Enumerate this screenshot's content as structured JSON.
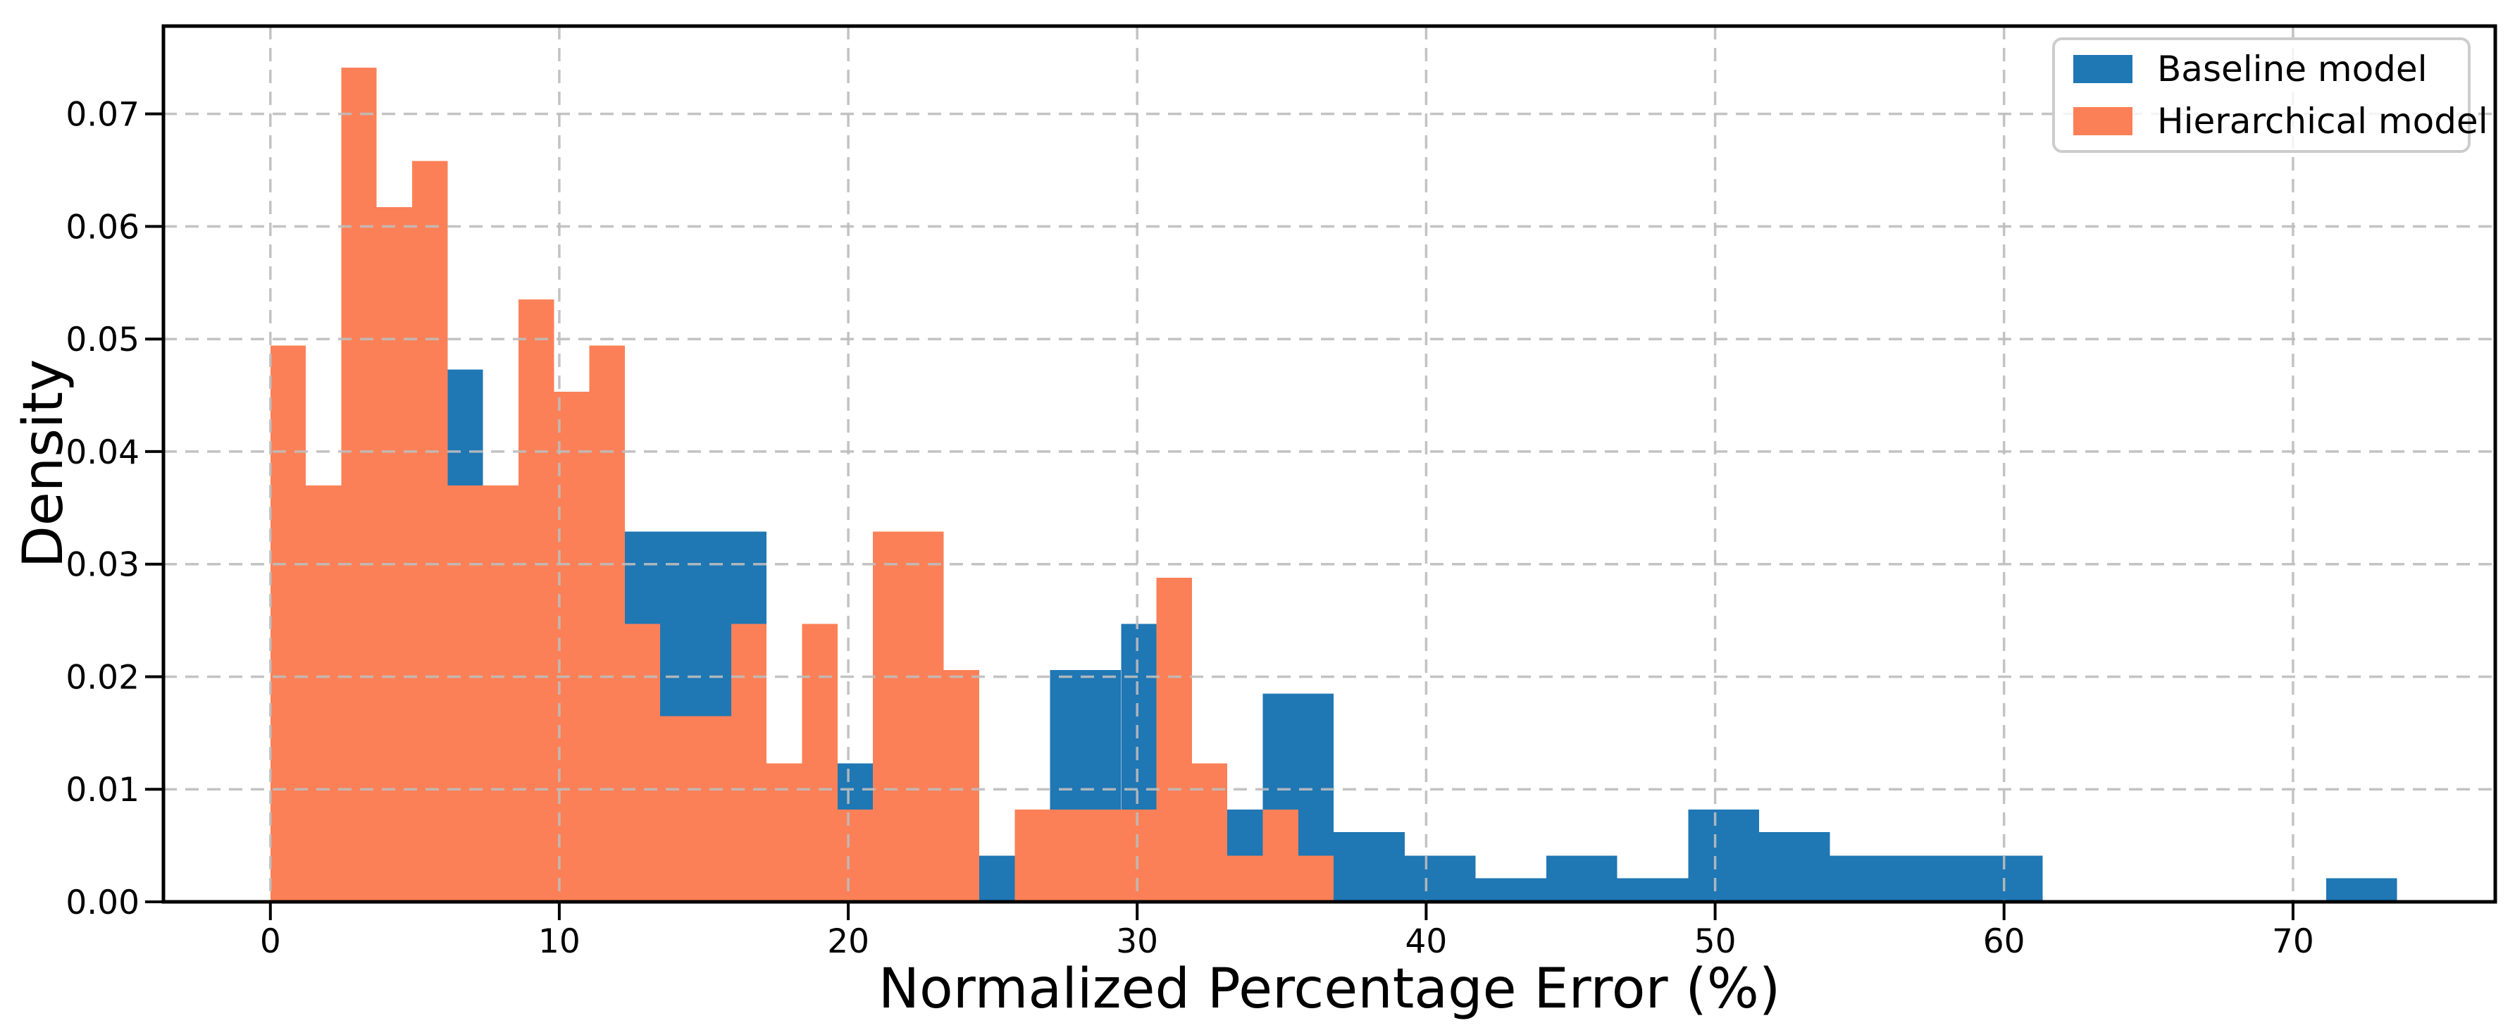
{
  "chart_data": {
    "type": "bar",
    "subtype": "overlaid-histograms",
    "title": "",
    "xlabel": "Normalized Percentage Error (%)",
    "ylabel": "Density",
    "xlim": [
      -3.7,
      77.0
    ],
    "ylim": [
      0,
      0.0778
    ],
    "x_ticks": [
      0,
      10,
      20,
      30,
      40,
      50,
      60,
      70
    ],
    "x_tick_labels": [
      "0",
      "10",
      "20",
      "30",
      "40",
      "50",
      "60",
      "70"
    ],
    "y_ticks": [
      0.0,
      0.01,
      0.02,
      0.03,
      0.04,
      0.05,
      0.06,
      0.07
    ],
    "y_tick_labels": [
      "0.00",
      "0.01",
      "0.02",
      "0.03",
      "0.04",
      "0.05",
      "0.06",
      "0.07"
    ],
    "grid": {
      "on": true,
      "style": "dashed",
      "color": "#bcbcbc",
      "above_bars": true
    },
    "legend": {
      "position": "upper right",
      "border_color": "#cccccc",
      "entries": [
        {
          "label": "Baseline model",
          "color": "#1f77b4"
        },
        {
          "label": "Hierarchical model",
          "color": "#fb8057"
        }
      ]
    },
    "series": [
      {
        "name": "Baseline model",
        "color": "#1f77b4",
        "bin_start": 0,
        "bin_width": 2.45333,
        "densities": [
          0.0329,
          0.0452,
          0.0473,
          0.0288,
          0.0308,
          0.0329,
          0.0329,
          0.0103,
          0.0123,
          0.0144,
          0.0041,
          0.0206,
          0.0247,
          0.0082,
          0.0185,
          0.0062,
          0.0041,
          0.0021,
          0.0041,
          0.0021,
          0.0082,
          0.0062,
          0.0041,
          0.0041,
          0.0041,
          0,
          0,
          0,
          0,
          0.0021
        ]
      },
      {
        "name": "Hierarchical model",
        "color": "#fb8057",
        "bin_start": 0,
        "bin_width": 1.22667,
        "densities": [
          0.0494,
          0.037,
          0.0741,
          0.0617,
          0.0658,
          0.037,
          0.037,
          0.0535,
          0.0453,
          0.0494,
          0.0247,
          0.0165,
          0.0165,
          0.0247,
          0.0123,
          0.0247,
          0.0082,
          0.0329,
          0.0329,
          0.0206,
          0,
          0.0082,
          0.0082,
          0.0082,
          0.0082,
          0.0288,
          0.0123,
          0.0041,
          0.0082,
          0.0041
        ]
      }
    ]
  }
}
